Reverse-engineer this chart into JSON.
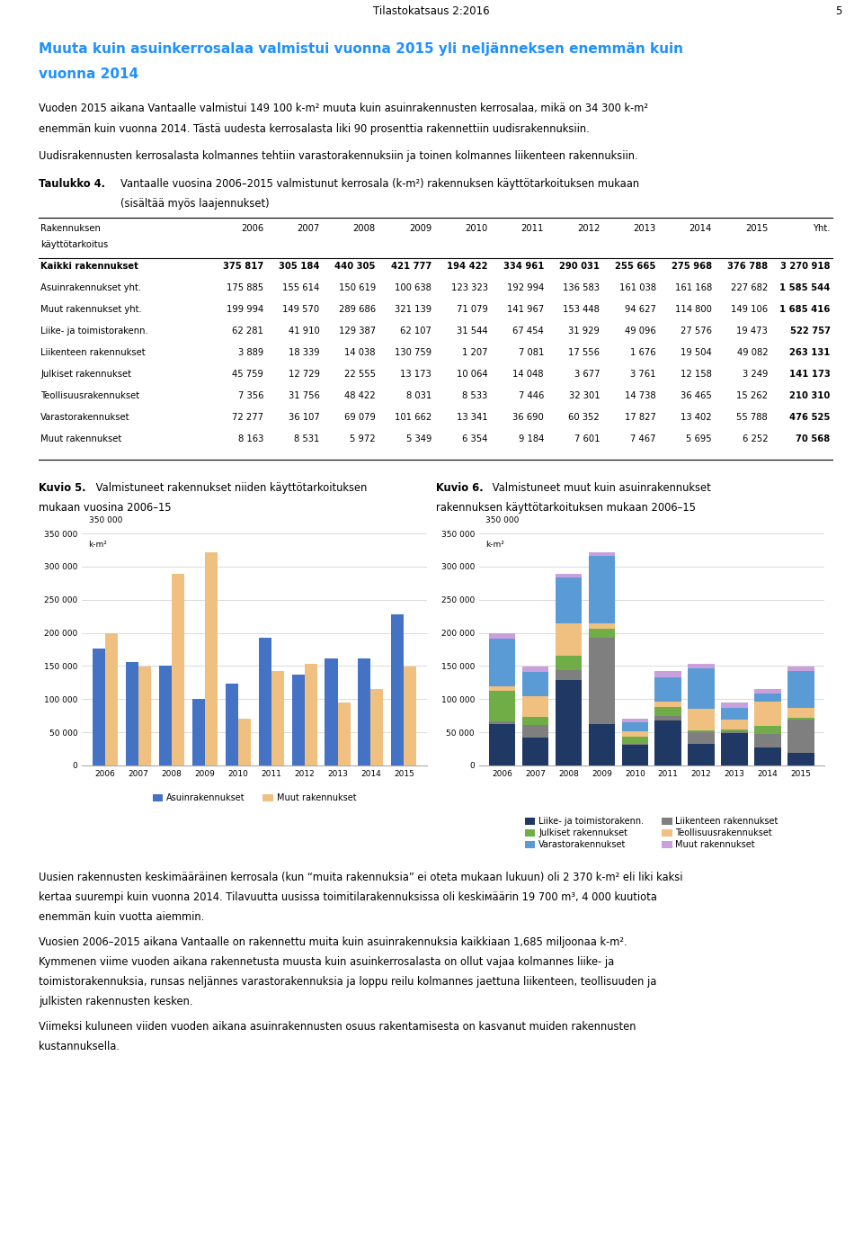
{
  "page_header": "Tilastokatsaus 2:2016",
  "page_number": "5",
  "main_title_line1": "Muuta kuin asuinkerrosalaa valmistui vuonna 2015 yli neljänneksen enemmän kuin",
  "main_title_line2": "vuonna 2014",
  "main_title_color": "#1E90FF",
  "para1_line1": "Vuoden 2015 aikana Vantaalle valmistui 149 100 k-m² muuta kuin asuinrakennusten kerrosalaa, mikä on 34 300 k-m²",
  "para1_line2": "enemmän kuin vuonna 2014. Tästä uudesta kerrosalasta liki 90 prosenttia rakennettiin uudisrakennuksiin.",
  "para2": "Uudisrakennusten kerrosalasta kolmannes tehtiin varastorakennuksiin ja toinen kolmannes liikenteen rakennuksiin.",
  "taulukko_label": "Taulukko 4.",
  "taulukko_desc_line1": "Vantaalle vuosina 2006–2015 valmistunut kerrosala (k-m²) rakennuksen käyttötarkoituksen mukaan",
  "taulukko_desc_line2": "(sisältää myös laajennukset)",
  "table_col_headers": [
    "2006",
    "2007",
    "2008",
    "2009",
    "2010",
    "2011",
    "2012",
    "2013",
    "2014",
    "2015",
    "Yht."
  ],
  "table_rows": [
    {
      "label": "Kaikki rakennukset",
      "bold": true,
      "values": [
        375817,
        305184,
        440305,
        421777,
        194422,
        334961,
        290031,
        255665,
        275968,
        376788,
        3270918
      ]
    },
    {
      "label": "Asuinrakennukset yht.",
      "bold": false,
      "values": [
        175885,
        155614,
        150619,
        100638,
        123323,
        192994,
        136583,
        161038,
        161168,
        227682,
        1585544
      ]
    },
    {
      "label": "Muut rakennukset yht.",
      "bold": false,
      "values": [
        199994,
        149570,
        289686,
        321139,
        71079,
        141967,
        153448,
        94627,
        114800,
        149106,
        1685416
      ]
    },
    {
      "label": "Liike- ja toimistorakenn.",
      "bold": false,
      "values": [
        62281,
        41910,
        129387,
        62107,
        31544,
        67454,
        31929,
        49096,
        27576,
        19473,
        522757
      ]
    },
    {
      "label": "Liikenteen rakennukset",
      "bold": false,
      "values": [
        3889,
        18339,
        14038,
        130759,
        1207,
        7081,
        17556,
        1676,
        19504,
        49082,
        263131
      ]
    },
    {
      "label": "Julkiset rakennukset",
      "bold": false,
      "values": [
        45759,
        12729,
        22555,
        13173,
        10064,
        14048,
        3677,
        3761,
        12158,
        3249,
        141173
      ]
    },
    {
      "label": "Teollisuusrakennukset",
      "bold": false,
      "values": [
        7356,
        31756,
        48422,
        8031,
        8533,
        7446,
        32301,
        14738,
        36465,
        15262,
        210310
      ]
    },
    {
      "label": "Varastorakennukset",
      "bold": false,
      "values": [
        72277,
        36107,
        69079,
        101662,
        13341,
        36690,
        60352,
        17827,
        13402,
        55788,
        476525
      ]
    },
    {
      "label": "Muut rakennukset",
      "bold": false,
      "values": [
        8163,
        8531,
        5972,
        5349,
        6354,
        9184,
        7601,
        7467,
        5695,
        6252,
        70568
      ]
    }
  ],
  "kuvio5_bold": "Kuvio 5.",
  "kuvio5_rest_line1": " Valmistuneet rakennukset niiden käyttötarkoituksen",
  "kuvio5_rest_line2": "mukaan vuosina 2006–15",
  "kuvio6_bold": "Kuvio 6.",
  "kuvio6_rest_line1": " Valmistuneet muut kuin asuinrakennukset",
  "kuvio6_rest_line2": "rakennuksen käyttötarkoituksen mukaan 2006–15",
  "years": [
    2006,
    2007,
    2008,
    2009,
    2010,
    2011,
    2012,
    2013,
    2014,
    2015
  ],
  "asuinrakennukset": [
    175885,
    155614,
    150619,
    100638,
    123323,
    192994,
    136583,
    161038,
    161168,
    227682
  ],
  "muut_rakennukset": [
    199994,
    149570,
    289686,
    321139,
    71079,
    141967,
    153448,
    94627,
    114800,
    149106
  ],
  "liike_toimisto": [
    62281,
    41910,
    129387,
    62107,
    31544,
    67454,
    31929,
    49096,
    27576,
    19473
  ],
  "liikenteen": [
    3889,
    18339,
    14038,
    130759,
    1207,
    7081,
    17556,
    1676,
    19504,
    49082
  ],
  "julkiset": [
    45759,
    12729,
    22555,
    13173,
    10064,
    14048,
    3677,
    3761,
    12158,
    3249
  ],
  "teollisuus": [
    7356,
    31756,
    48422,
    8031,
    8533,
    7446,
    32301,
    14738,
    36465,
    15262
  ],
  "varasto": [
    72277,
    36107,
    69079,
    101662,
    13341,
    36690,
    60352,
    17827,
    13402,
    55788
  ],
  "muut_rak": [
    8163,
    8531,
    5972,
    5349,
    6354,
    9184,
    7601,
    7467,
    5695,
    6252
  ],
  "color_asuin": "#4472C4",
  "color_muut": "#F0C080",
  "color_liike": "#1F3864",
  "color_liikenne": "#7F7F7F",
  "color_julkiset": "#70AD47",
  "color_teollisuus": "#F0C080",
  "color_varasto": "#5B9BD5",
  "color_muut_rak": "#C9A0DC",
  "para3_line1": "Uusien rakennusten keskimääräinen kerrosala (kun “muita rakennuksia” ei oteta mukaan lukuun) oli 2 370 k-m² eli liki kaksi",
  "para3_line2": "kertaa suurempi kuin vuonna 2014. Tilavuutta uusissa toimitilarakennuksissa oli keskiмäärin 19 700 m³, 4 000 kuutiota",
  "para3_line3": "enemmän kuin vuotta aiemmin.",
  "para4_line1": "Vuosien 2006–2015 aikana Vantaalle on rakennettu muita kuin asuinrakennuksia kaikkiaan 1,685 miljoonaa k-m².",
  "para4_line2": "Kymmenen viime vuoden aikana rakennetusta muusta kuin asuinkerrosalasta on ollut vajaa kolmannes liike- ja",
  "para4_line3": "toimistorakennuksia, runsas neljännes varastorakennuksia ja loppu reilu kolmannes jaettuna liikenteen, teollisuuden ja",
  "para4_line4": "julkisten rakennusten kesken.",
  "para5_line1": "Viimeksi kuluneen viiden vuoden aikana asuinrakennusten osuus rakentamisesta on kasvanut muiden rakennusten",
  "para5_line2": "kustannuksella."
}
